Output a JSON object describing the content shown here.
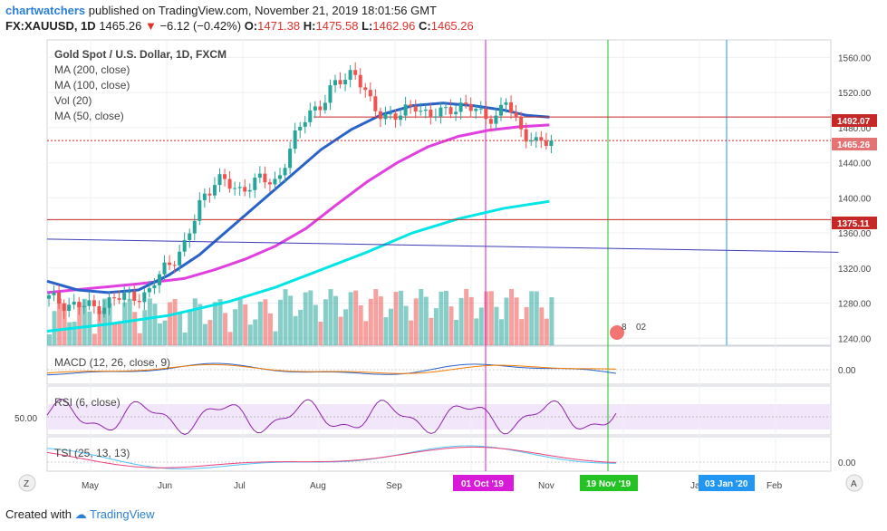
{
  "header": {
    "author": "chartwatchers",
    "published": "published on TradingView.com, November 21, 2019 18:01:56 GMT",
    "symbol": "FX:XAUUSD, 1D",
    "last": "1465.26",
    "change": "−6.12 (−0.42%)",
    "o_label": "O:",
    "o_val": "1471.38",
    "h_label": "H:",
    "h_val": "1475.58",
    "l_label": "L:",
    "l_val": "1462.96",
    "c_label": "C:",
    "c_val": "1465.26"
  },
  "legend": {
    "title": "Gold Spot / U.S. Dollar, 1D, FXCM",
    "lines": [
      "MA (200, close)",
      "MA (100, close)",
      "Vol (20)",
      "MA (50, close)"
    ]
  },
  "panes": {
    "macd": "MACD (12, 26, close, 9)",
    "rsi": "RSI (6, close)",
    "tsi": "TSI (25, 13, 13)",
    "rsi_mid": "50.00",
    "zero": "0.00"
  },
  "markers": {
    "left_button": "Z",
    "right_button": "A",
    "date_oct": "01 Oct '19",
    "date_nov": "19 Nov '19",
    "date_jan": "03 Jan '20",
    "badge_a": "8",
    "badge_b": "02"
  },
  "price_tags": {
    "upper_line": "1492.07",
    "last": "1465.26",
    "lower_line": "1375.11"
  },
  "colors": {
    "up": "#26a69a",
    "down": "#ef5350",
    "ma200": "#00e5e5",
    "ma100": "#e040e0",
    "ma50": "#2962c9",
    "hline": "#c62828",
    "trend": "#3a3ab8",
    "oct_line": "#d81bd8",
    "nov_line": "#22c322",
    "jan_line": "#2196f3"
  },
  "footer": {
    "created": "Created with",
    "brand": "TradingView"
  },
  "chart_data": {
    "type": "candlestick",
    "title": "Gold Spot / U.S. Dollar, 1D, FXCM",
    "y_ticks": [
      1240,
      1280,
      1320,
      1360,
      1400,
      1440,
      1480,
      1520,
      1560
    ],
    "ylim": [
      1232,
      1580
    ],
    "x_labels": [
      "May",
      "Jun",
      "Jul",
      "Aug",
      "Sep",
      "Oct",
      "Nov",
      "Dec",
      "Jan",
      "Feb"
    ],
    "x_label_month_index": [
      0,
      1,
      2,
      3,
      4,
      5,
      6,
      7,
      8,
      9
    ],
    "price_path": [
      [
        0,
        1285
      ],
      [
        0.3,
        1278
      ],
      [
        0.6,
        1275
      ],
      [
        0.9,
        1285
      ],
      [
        1.1,
        1290
      ],
      [
        1.3,
        1288
      ],
      [
        1.5,
        1320
      ],
      [
        1.8,
        1345
      ],
      [
        2.0,
        1400
      ],
      [
        2.2,
        1420
      ],
      [
        2.5,
        1410
      ],
      [
        2.8,
        1420
      ],
      [
        3.0,
        1420
      ],
      [
        3.2,
        1460
      ],
      [
        3.4,
        1500
      ],
      [
        3.6,
        1505
      ],
      [
        3.8,
        1535
      ],
      [
        4.0,
        1545
      ],
      [
        4.2,
        1510
      ],
      [
        4.4,
        1495
      ],
      [
        4.6,
        1490
      ],
      [
        4.8,
        1510
      ],
      [
        5.0,
        1490
      ],
      [
        5.3,
        1505
      ],
      [
        5.6,
        1500
      ],
      [
        5.9,
        1490
      ],
      [
        6.0,
        1510
      ],
      [
        6.2,
        1480
      ],
      [
        6.4,
        1460
      ],
      [
        6.6,
        1465
      ]
    ],
    "ma50": [
      [
        0,
        1305
      ],
      [
        0.4,
        1295
      ],
      [
        0.8,
        1292
      ],
      [
        1.2,
        1295
      ],
      [
        1.6,
        1312
      ],
      [
        2.0,
        1335
      ],
      [
        2.4,
        1365
      ],
      [
        2.8,
        1395
      ],
      [
        3.2,
        1425
      ],
      [
        3.6,
        1455
      ],
      [
        4.0,
        1478
      ],
      [
        4.4,
        1495
      ],
      [
        4.8,
        1505
      ],
      [
        5.2,
        1508
      ],
      [
        5.6,
        1505
      ],
      [
        6.0,
        1500
      ],
      [
        6.3,
        1494
      ],
      [
        6.6,
        1492
      ]
    ],
    "ma100": [
      [
        0,
        1292
      ],
      [
        0.6,
        1297
      ],
      [
        1.2,
        1302
      ],
      [
        1.8,
        1308
      ],
      [
        2.2,
        1318
      ],
      [
        2.6,
        1330
      ],
      [
        3.0,
        1345
      ],
      [
        3.4,
        1365
      ],
      [
        3.8,
        1392
      ],
      [
        4.2,
        1418
      ],
      [
        4.6,
        1440
      ],
      [
        5.0,
        1458
      ],
      [
        5.4,
        1470
      ],
      [
        5.8,
        1477
      ],
      [
        6.2,
        1481
      ],
      [
        6.6,
        1483
      ]
    ],
    "ma200": [
      [
        0,
        1248
      ],
      [
        0.8,
        1256
      ],
      [
        1.6,
        1266
      ],
      [
        2.4,
        1282
      ],
      [
        3.0,
        1298
      ],
      [
        3.6,
        1318
      ],
      [
        4.2,
        1338
      ],
      [
        4.8,
        1360
      ],
      [
        5.4,
        1376
      ],
      [
        6.0,
        1388
      ],
      [
        6.6,
        1396
      ]
    ],
    "horizontal_levels": [
      1492.07,
      1465.26,
      1375.11
    ],
    "trendline": [
      [
        0,
        1353
      ],
      [
        10.4,
        1338
      ]
    ],
    "rsi_mid": 50,
    "oscillator_zero": 0
  }
}
